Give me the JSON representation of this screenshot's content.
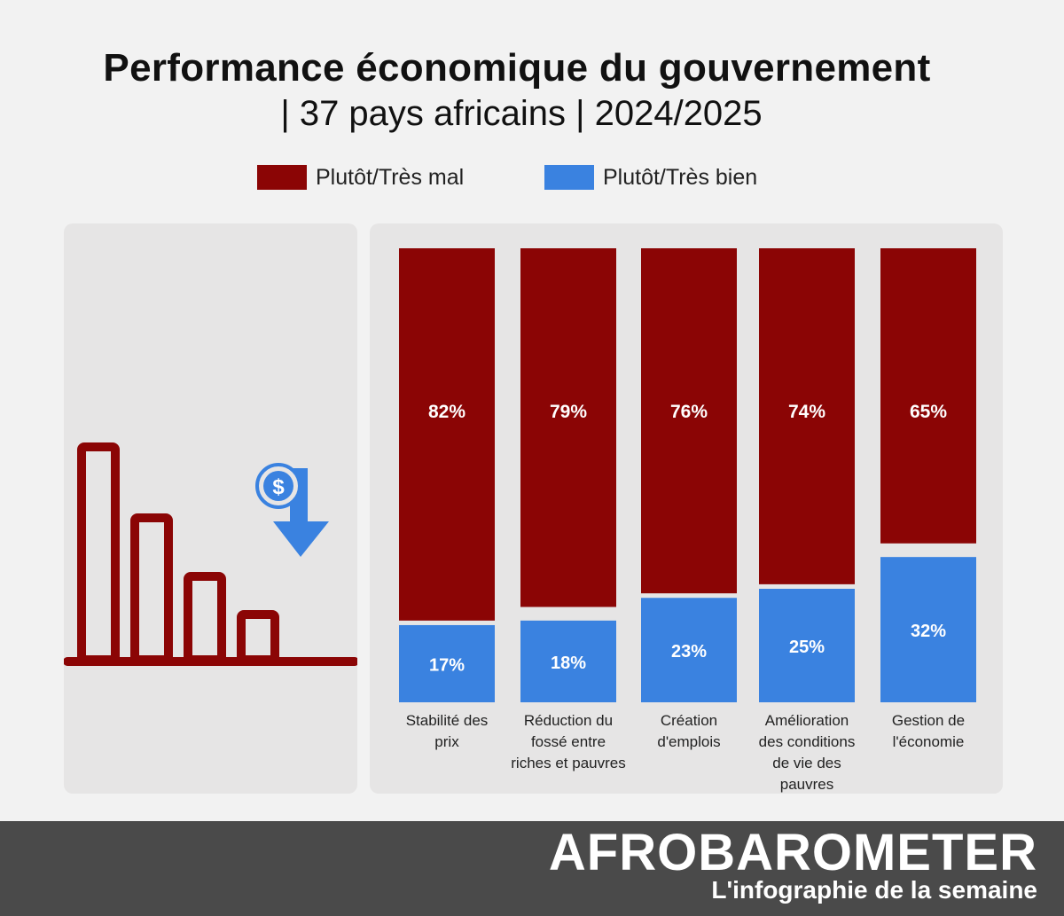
{
  "header": {
    "title": "Performance économique du gouvernement",
    "subtitle": "| 37 pays africains | 2024/2025"
  },
  "colors": {
    "bad": "#8b0505",
    "good": "#3a82e0",
    "panel": "#e6e5e5",
    "footer": "#4a4a4a"
  },
  "chart_data": {
    "type": "bar",
    "stacked": true,
    "title": "Performance économique du gouvernement | 37 pays africains | 2024/2025",
    "categories": [
      "Stabilité des prix",
      "Réduction du fossé entre riches et pauvres",
      "Création d'emplois",
      "Amélioration des conditions de vie des pauvres",
      "Gestion de l'économie"
    ],
    "category_lines": [
      [
        "Stabilité des",
        "prix"
      ],
      [
        "Réduction du",
        "fossé entre",
        "riches et pauvres"
      ],
      [
        "Création",
        "d'emplois"
      ],
      [
        "Amélioration",
        "des conditions",
        "de vie des",
        "pauvres"
      ],
      [
        "Gestion de",
        "l'économie"
      ]
    ],
    "series": [
      {
        "name": "Plutôt/Très mal",
        "values": [
          82,
          79,
          76,
          74,
          65
        ],
        "labels": [
          "82%",
          "79%",
          "76%",
          "74%",
          "65%"
        ]
      },
      {
        "name": "Plutôt/Très bien",
        "values": [
          17,
          18,
          23,
          25,
          32
        ],
        "labels": [
          "17%",
          "18%",
          "23%",
          "25%",
          "32%"
        ]
      }
    ],
    "ylim": [
      0,
      100
    ],
    "legend": "top-center"
  },
  "icon": {
    "name": "declining-bar-chart-dollar-down"
  },
  "footer": {
    "brand": "AFROBAROMETER",
    "tagline": "L'infographie de la semaine"
  }
}
